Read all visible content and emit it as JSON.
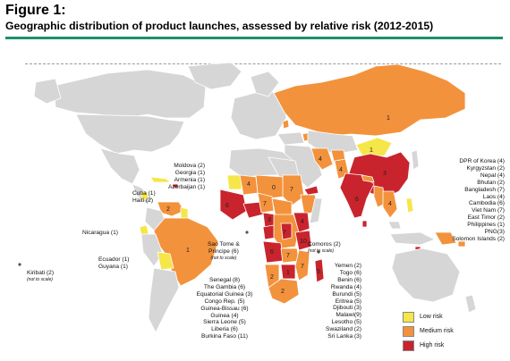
{
  "title": "Figure 1:",
  "subtitle": "Geographic distribution of product launches, assessed by relative risk (2012-2015)",
  "colors": {
    "low": "#f5e64a",
    "medium": "#f3923c",
    "high": "#c9242d",
    "none": "#d6d6d6",
    "border": "#ffffff",
    "accent": "#1f8f67"
  },
  "legend": [
    {
      "key": "low",
      "label": "Low risk"
    },
    {
      "key": "medium",
      "label": "Medium risk"
    },
    {
      "key": "high",
      "label": "High risk"
    }
  ],
  "map_numbers": {
    "russia": "1",
    "mongolia": "1",
    "china": "3",
    "india": "6",
    "southeast_asia": "4",
    "brazil": "1",
    "venezuela": "2",
    "west_africa": "6",
    "nigeria": "7",
    "chad": "0",
    "sudan": "7",
    "mali": "4",
    "cameroon": "3",
    "drc": "7",
    "kenya": "4",
    "angola": "6",
    "tanzania": "10",
    "zambia": "7",
    "mozambique": "7",
    "south_africa": "2",
    "namibia": "2",
    "zimbabwe": "1",
    "madagascar": "5",
    "iran": "4",
    "pakistan": "4"
  },
  "labels": {
    "caucasus": [
      "Moldova (2)",
      "Georgia (1)",
      "Armenia (1)",
      "Azerbaijan (1)"
    ],
    "caribbean": [
      "Cuba (1)",
      "Haiti (2)"
    ],
    "nicaragua": "Nicaragua (1)",
    "andes": [
      "Ecuador (1)",
      "Guyana (1)"
    ],
    "kiribati": "Kiribati (2)",
    "not_to_scale_1": "(not to scale)",
    "sao_tome": [
      "Sao Tome &",
      "Principe (6)"
    ],
    "not_to_scale_2": "(not to scale)",
    "comoros": "Comoros (2)",
    "not_to_scale_3": "(not to scale)",
    "west_africa": [
      "Senegal (8)",
      "The Gambia (6)",
      "Equatorial Guinea (3)",
      "Congo Rep. (5)",
      "Guinea-Bissau (6)",
      "Guinea (4)",
      "Sierra Leone (5)",
      "Liberia (6)",
      "Burkina Faso (11)"
    ],
    "east_africa": [
      "Yemen (2)",
      "Togo (6)",
      "Benin (6)",
      "Rwanda (4)",
      "Burundi (5)",
      "Eritrea (5)",
      "Djibouti (3)",
      "Malawi(9)",
      "Lesotho (5)",
      "Swaziland (2)",
      "Sri Lanka (3)"
    ],
    "asia": [
      "DPR of Korea (4)",
      "Kyrgyzstan (2)",
      "Nepal (4)",
      "Bhutan (2)",
      "Bangladesh (7)",
      "Laos (4)",
      "Cambodia (6)",
      "Viet Nam (7)",
      "East Timor (2)",
      "Philippines (1)",
      "PNG(3)",
      "Solomon Islands (2)"
    ]
  }
}
